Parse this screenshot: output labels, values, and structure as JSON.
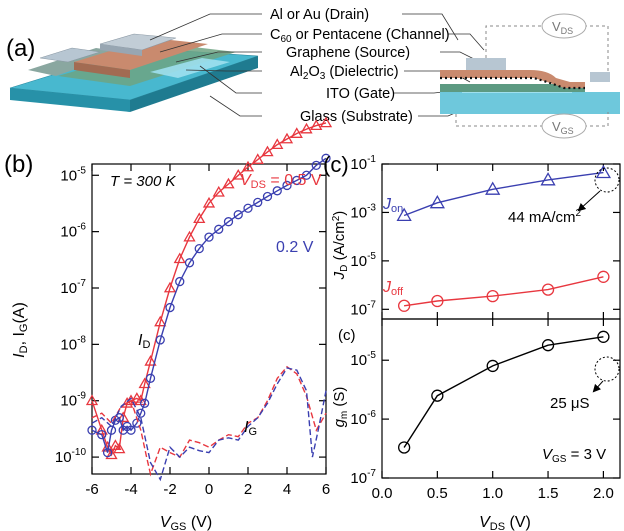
{
  "panels": {
    "a": "(a)",
    "b": "(b)",
    "c_top": "(c)",
    "c_bottom": "(c)"
  },
  "schematic": {
    "labels": [
      {
        "main": "Al or Au (Drain)"
      },
      {
        "main": "C",
        "sub": "60",
        "tail": " or Pentacene (Channel)"
      },
      {
        "main": "Graphene (Source)"
      },
      {
        "main": "Al",
        "sub": "2",
        "mid": "O",
        "sub2": "3",
        "tail": " (Dielectric)"
      },
      {
        "main": "ITO (Gate)"
      },
      {
        "main": "Glass (Substrate)"
      }
    ],
    "vds": {
      "main": "V",
      "sub": "DS"
    },
    "vgs": {
      "main": "V",
      "sub": "GS"
    },
    "colors": {
      "glass": "#6ec8dc",
      "ito": "#9fe0ee",
      "graphene": "#4f8a6a",
      "channel": "#c98a6e",
      "drain": "#b7c6d2",
      "dielectric": "#5d9a82"
    }
  },
  "b_texts": {
    "temp": "T = 300 K",
    "vds05": "V",
    "vds05_sub": "DS",
    "vds05_tail": " = 0.5 V",
    "vds02": "0.2 V",
    "id_label": "I",
    "id_sub": "D",
    "ig_label": "I",
    "ig_sub": "G",
    "ylabel": "I",
    "ylabel_sub": "D",
    "ylabel_mid": ", I",
    "ylabel_sub2": "G",
    "ylabel_tail": "(A)",
    "xlabel": "V",
    "xlabel_sub": "GS",
    "xlabel_tail": " (V)"
  },
  "c_texts": {
    "jon": "J",
    "jon_sub": "on",
    "joff": "J",
    "joff_sub": "off",
    "jon_annot": "44 mA/cm",
    "jon_annot_sup": "2",
    "ylabel_top": "J",
    "ylabel_top_sub": "D",
    "ylabel_top_tail": " (A/cm",
    "ylabel_top_sup": "2",
    "ylabel_top_end": ")",
    "ylabel_bot": "g",
    "ylabel_bot_sub": "m",
    "ylabel_bot_tail": " (S)",
    "gm_annot": "25 μS",
    "vgs_note": "V",
    "vgs_note_sub": "GS",
    "vgs_note_tail": " = 3 V",
    "xlabel": "V",
    "xlabel_sub": "DS",
    "xlabel_tail": " (V)"
  },
  "chart_data": [
    {
      "type": "line",
      "panel": "b",
      "xlabel": "VGS (V)",
      "ylabel": "ID, IG(A)",
      "xlim": [
        -6,
        6
      ],
      "ylim_exponent": [
        -10.3,
        -4.8
      ],
      "yscale": "log",
      "x_ticks": [
        -6,
        -4,
        -2,
        0,
        2,
        4,
        6
      ],
      "y_ticks": [
        -10,
        -9,
        -8,
        -7,
        -6,
        -5
      ],
      "series": [
        {
          "name": "VDS = 0.5 V",
          "label": "ID",
          "color": "#e8373f",
          "marker": "triangle",
          "x": [
            -6.0,
            -5.5,
            -5.2,
            -5.0,
            -4.8,
            -4.6,
            -4.4,
            -4.2,
            -4.0,
            -3.7,
            -3.5,
            -3.3,
            -3.0,
            -2.5,
            -2.0,
            -1.5,
            -1.0,
            -0.5,
            0.0,
            0.5,
            1.0,
            1.5,
            2.0,
            2.5,
            3.0,
            3.5,
            4.0,
            4.5,
            5.0,
            5.5,
            6.0
          ],
          "y": [
            1e-09,
            3e-10,
            1.5e-10,
            1.1e-10,
            1.6e-10,
            1.4e-10,
            5e-10,
            9e-10,
            1e-09,
            1.1e-09,
            1e-09,
            2e-09,
            5e-09,
            2.5e-08,
            1e-07,
            3.3e-07,
            8e-07,
            1.7e-06,
            3.2e-06,
            5e-06,
            7e-06,
            1e-05,
            1.4e-05,
            1.9e-05,
            2.6e-05,
            3.5e-05,
            4.4e-05,
            5.5e-05,
            6.6e-05,
            7.6e-05,
            8.5e-05
          ]
        },
        {
          "name": "0.2 V",
          "label": "ID",
          "color": "#3a3fb0",
          "marker": "circle",
          "x": [
            -6.0,
            -5.5,
            -5.2,
            -5.0,
            -4.8,
            -4.6,
            -4.4,
            -4.2,
            -4.0,
            -3.7,
            -3.5,
            -3.3,
            -3.0,
            -2.5,
            -2.0,
            -1.5,
            -1.0,
            -0.5,
            0.0,
            0.5,
            1.0,
            1.5,
            2.0,
            2.5,
            3.0,
            3.5,
            4.0,
            4.5,
            5.0,
            5.5,
            6.0
          ],
          "y": [
            3e-10,
            2.5e-10,
            1.2e-10,
            3e-10,
            4.5e-10,
            5e-10,
            3e-10,
            3.5e-10,
            3e-10,
            4e-10,
            6e-10,
            9e-10,
            2.5e-09,
            1.2e-08,
            4.5e-08,
            1.3e-07,
            2.8e-07,
            5e-07,
            8e-07,
            1.1e-06,
            1.5e-06,
            2e-06,
            2.6e-06,
            3.3e-06,
            4.2e-06,
            5.3e-06,
            6.6e-06,
            8.1e-06,
            1e-05,
            1.5e-05,
            2e-05
          ]
        },
        {
          "name": "VDS = 0.5 V",
          "label": "IG",
          "color": "#e8373f",
          "dash": "6,3",
          "x": [
            -6.0,
            -5.5,
            -5.0,
            -4.5,
            -4.0,
            -3.5,
            -3.2,
            -3.0,
            -2.5,
            -2.0,
            -1.5,
            -1.0,
            -0.5,
            0.0,
            0.5,
            1.0,
            1.5,
            2.0,
            2.5,
            3.0,
            3.5,
            4.0,
            4.5,
            5.0,
            5.5,
            6.0
          ],
          "y": [
            5e-10,
            6e-10,
            4e-10,
            8e-10,
            1e-09,
            3e-10,
            1e-10,
            5e-11,
            1.5e-10,
            1.2e-10,
            1e-10,
            2e-10,
            1.8e-10,
            1.5e-10,
            2e-10,
            2.5e-10,
            2.3e-10,
            4e-10,
            5e-10,
            1e-09,
            2.5e-09,
            4e-09,
            3e-09,
            1.2e-09,
            3e-10,
            6e-10
          ]
        },
        {
          "name": "0.2 V",
          "label": "IG",
          "color": "#3a3fb0",
          "dash": "6,3",
          "x": [
            -6.0,
            -5.5,
            -5.0,
            -4.5,
            -4.0,
            -3.5,
            -3.0,
            -2.5,
            -2.0,
            -1.5,
            -1.0,
            -0.5,
            0.0,
            0.5,
            1.0,
            1.5,
            2.0,
            2.5,
            3.0,
            3.5,
            4.0,
            4.5,
            5.0,
            5.3,
            5.6,
            6.0
          ],
          "y": [
            4e-10,
            5e-10,
            3.5e-10,
            8e-10,
            1.1e-09,
            5e-10,
            8e-11,
            4e-11,
            1.5e-10,
            1e-10,
            1.5e-10,
            1.3e-10,
            1.2e-10,
            2e-10,
            2.2e-10,
            2e-10,
            3.5e-10,
            5e-10,
            9e-10,
            2e-09,
            3.8e-09,
            3.5e-09,
            1.5e-09,
            1e-10,
            3e-10,
            1.5e-09
          ]
        }
      ]
    },
    {
      "type": "line",
      "panel": "c-top",
      "ylabel": "JD (A/cm2)",
      "yscale": "log",
      "xlim": [
        0.0,
        2.15
      ],
      "ylim_exponent": [
        -7.4,
        -1
      ],
      "y_ticks": [
        -7,
        -5,
        -3,
        -1
      ],
      "series": [
        {
          "name": "Jon",
          "color": "#3a3fb0",
          "marker": "triangle",
          "x": [
            0.2,
            0.5,
            1.0,
            1.5,
            2.0
          ],
          "y": [
            0.00075,
            0.0025,
            0.009,
            0.022,
            0.044
          ]
        },
        {
          "name": "Joff",
          "color": "#e8373f",
          "marker": "circle",
          "x": [
            0.2,
            0.5,
            1.0,
            1.5,
            2.0
          ],
          "y": [
            1.4e-07,
            2.2e-07,
            3.5e-07,
            6.5e-07,
            2.2e-06
          ]
        }
      ]
    },
    {
      "type": "line",
      "panel": "c-bottom",
      "xlabel": "VDS (V)",
      "ylabel": "gm (S)",
      "yscale": "log",
      "xlim": [
        0.0,
        2.15
      ],
      "ylim_exponent": [
        -7,
        -4.3
      ],
      "x_ticks": [
        0.0,
        0.5,
        1.0,
        1.5,
        2.0
      ],
      "x_tick_labels": [
        "0.0",
        "0.5",
        "1.0",
        "1.5",
        "2.0"
      ],
      "y_ticks": [
        -7,
        -6,
        -5
      ],
      "series": [
        {
          "name": "gm",
          "color": "#000000",
          "marker": "circle",
          "x": [
            0.2,
            0.5,
            1.0,
            1.5,
            2.0
          ],
          "y": [
            3.3e-07,
            2.5e-06,
            8e-06,
            1.8e-05,
            2.5e-05
          ]
        }
      ]
    }
  ]
}
